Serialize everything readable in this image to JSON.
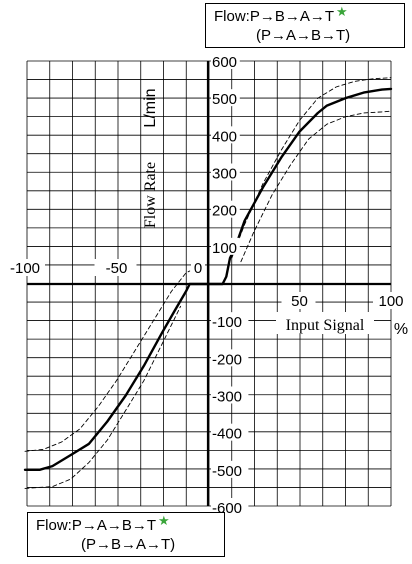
{
  "chart_data": {
    "type": "line",
    "xlabel": "Input Signal",
    "xunit": "%",
    "ylabel": "Flow Rate",
    "yunit": "L/min",
    "xlim": [
      -100,
      100
    ],
    "ylim": [
      -600,
      600
    ],
    "grid": true,
    "x_ticks": [
      "-100",
      "-50",
      "0",
      "50",
      "100"
    ],
    "y_ticks": [
      "600",
      "500",
      "400",
      "300",
      "200",
      "100",
      "-100",
      "-200",
      "-300",
      "-400",
      "-500",
      "-600"
    ],
    "series": [
      {
        "style": "solid",
        "x": [
          -100,
          -92,
          -85,
          -75,
          -65,
          -55,
          -45,
          -35,
          -25,
          -18,
          -12,
          -10,
          -8,
          0,
          8,
          10,
          12,
          15,
          20,
          30,
          40,
          50,
          60,
          65,
          75,
          85,
          95,
          100
        ],
        "y": [
          -500,
          -500,
          -490,
          -460,
          -430,
          -370,
          -300,
          -220,
          -130,
          -70,
          -20,
          0,
          0,
          0,
          0,
          20,
          70,
          100,
          170,
          260,
          340,
          410,
          460,
          480,
          500,
          515,
          523,
          525
        ]
      },
      {
        "style": "dashed",
        "x": [
          -100,
          -90,
          -80,
          -70,
          -60,
          -50,
          -40,
          -30,
          -20,
          -12,
          -10
        ],
        "y": [
          -450,
          -445,
          -425,
          -390,
          -330,
          -260,
          -180,
          -100,
          -20,
          30,
          35
        ]
      },
      {
        "style": "dashed",
        "x": [
          -100,
          -85,
          -75,
          -65,
          -55,
          -45,
          -35,
          -25,
          -15
        ],
        "y": [
          -550,
          -545,
          -525,
          -480,
          -420,
          -340,
          -260,
          -160,
          -60
        ]
      },
      {
        "style": "dashed",
        "x": [
          13,
          20,
          30,
          40,
          50,
          60,
          70,
          80,
          90,
          100
        ],
        "y": [
          70,
          160,
          270,
          360,
          440,
          500,
          530,
          545,
          552,
          555
        ]
      },
      {
        "style": "dashed",
        "x": [
          18,
          25,
          35,
          45,
          55,
          65,
          75,
          85,
          95,
          100
        ],
        "y": [
          60,
          140,
          240,
          320,
          390,
          430,
          450,
          460,
          463,
          465
        ]
      }
    ]
  },
  "legend_top": {
    "line1": "Flow:P→B→A→T",
    "line2": "(P→A→B→T)"
  },
  "legend_bottom": {
    "line1": "Flow:P→A→B→T",
    "line2": "(P→B→A→T)"
  },
  "star_glyph": "★",
  "colors": {
    "star": "#3aa53a",
    "grid": "#000000",
    "curve": "#000000"
  }
}
